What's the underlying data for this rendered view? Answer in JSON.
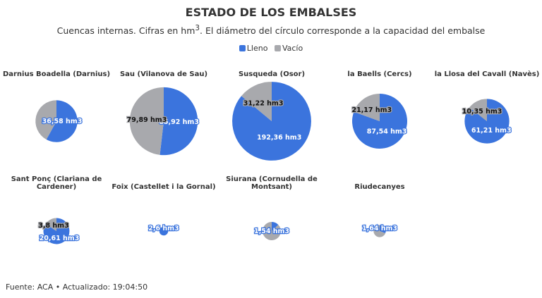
{
  "title": "ESTADO DE LOS EMBALSES",
  "subtitle_pre": "Cuencas internas. Cifras en hm",
  "subtitle_sup": "3",
  "subtitle_post": ". El diámetro del círculo corresponde a la capacidad del embalse",
  "legend": [
    {
      "label": "Lleno",
      "color": "#3b74dd"
    },
    {
      "label": "Vacío",
      "color": "#a8a9ad"
    }
  ],
  "footer": "Fuente: ACA • Actualizado: 19:04:50",
  "chart_data": {
    "type": "pie",
    "unit": "hm3",
    "series_names": [
      "Lleno",
      "Vacío"
    ],
    "reservoirs": [
      {
        "name": [
          "Darnius Boadella (Darnius)"
        ],
        "lleno": 36.58,
        "vacio": 26.5,
        "lleno_label": "36,58 hm3",
        "vacio_label": null
      },
      {
        "name": [
          "Sau (Vilanova de Sau)"
        ],
        "lleno": 85.92,
        "vacio": 79.89,
        "lleno_label": "85,92 hm3",
        "vacio_label": "79,89 hm3"
      },
      {
        "name": [
          "Susqueda (Osor)"
        ],
        "lleno": 192.36,
        "vacio": 31.22,
        "lleno_label": "192,36 hm3",
        "vacio_label": "31,22 hm3"
      },
      {
        "name": [
          "la Baells (Cercs)"
        ],
        "lleno": 87.54,
        "vacio": 21.17,
        "lleno_label": "87,54 hm3",
        "vacio_label": "21,17 hm3"
      },
      {
        "name": [
          "la Llosa del Cavall (Navès)"
        ],
        "lleno": 61.21,
        "vacio": 10.35,
        "lleno_label": "61,21 hm3",
        "vacio_label": "10,35 hm3"
      },
      {
        "name": [
          "Sant Ponç (Clariana de",
          "Cardener)"
        ],
        "lleno": 20.61,
        "vacio": 3.8,
        "lleno_label": "20,61 hm3",
        "vacio_label": "3,8 hm3"
      },
      {
        "name": [
          "Foix (Castellet i la Gornal)"
        ],
        "lleno": 2.6,
        "vacio": 0.2,
        "lleno_label": "2,6 hm3",
        "vacio_label": null
      },
      {
        "name": [
          "Siurana (Cornudella de",
          "Montsant)"
        ],
        "lleno": 1.54,
        "vacio": 10.5,
        "lleno_label": "1,54 hm3",
        "vacio_label": null
      },
      {
        "name": [
          "Riudecanyes"
        ],
        "lleno": 1.64,
        "vacio": 3.7,
        "lleno_label": "1,64 hm3",
        "vacio_label": null
      }
    ]
  }
}
